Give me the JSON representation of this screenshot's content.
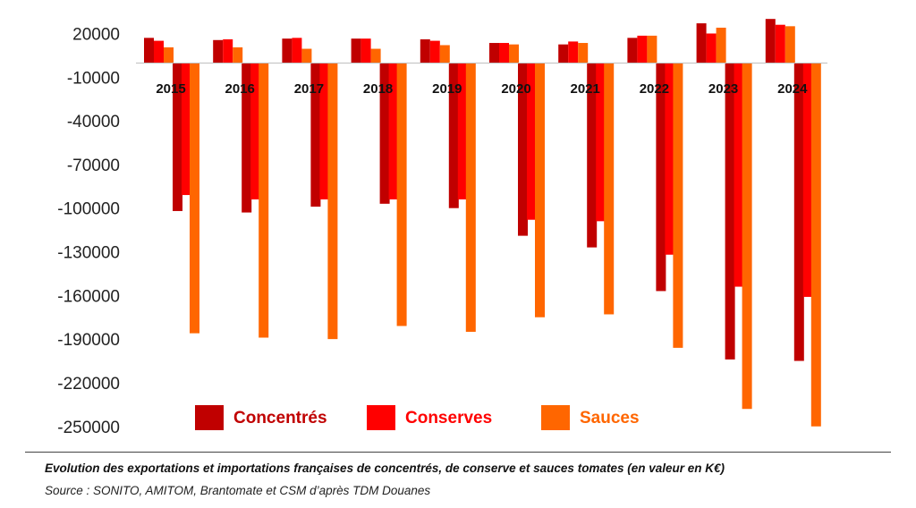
{
  "chart_data": {
    "type": "bar",
    "categories": [
      "2015",
      "2016",
      "2017",
      "2018",
      "2019",
      "2020",
      "2021",
      "2022",
      "2023",
      "2024"
    ],
    "series": [
      {
        "name": "Concentrés",
        "color": "#C00000",
        "positive": [
          17000,
          15500,
          16500,
          16500,
          16000,
          13500,
          12500,
          17000,
          27000,
          30000
        ],
        "negative": [
          -102000,
          -103000,
          -99000,
          -97000,
          -100000,
          -119000,
          -127000,
          -157000,
          -204000,
          -205000
        ]
      },
      {
        "name": "Conserves",
        "color": "#FF0000",
        "positive": [
          15000,
          16000,
          17000,
          16500,
          15000,
          13500,
          14500,
          18500,
          20000,
          26000
        ],
        "negative": [
          -91000,
          -94000,
          -94000,
          -94000,
          -94000,
          -108000,
          -109000,
          -132000,
          -154000,
          -161000
        ]
      },
      {
        "name": "Sauces",
        "color": "#FF6600",
        "positive": [
          10500,
          10500,
          9500,
          9500,
          12000,
          12500,
          13500,
          18500,
          24000,
          25000
        ],
        "negative": [
          -186000,
          -189000,
          -190000,
          -181000,
          -185000,
          -175000,
          -173000,
          -196000,
          -238000,
          -250000
        ]
      }
    ],
    "yticks": [
      20000,
      -10000,
      -40000,
      -70000,
      -100000,
      -130000,
      -160000,
      -190000,
      -220000,
      -250000
    ],
    "ylim": [
      -250000,
      20000
    ],
    "grid": false,
    "legend": "bottom-center"
  },
  "caption": "Evolution des exportations et importations françaises de concentrés, de conserve et sauces tomates (en valeur en K€)",
  "source": "Source : SONITO, AMITOM, Brantomate et CSM d’après TDM Douanes"
}
